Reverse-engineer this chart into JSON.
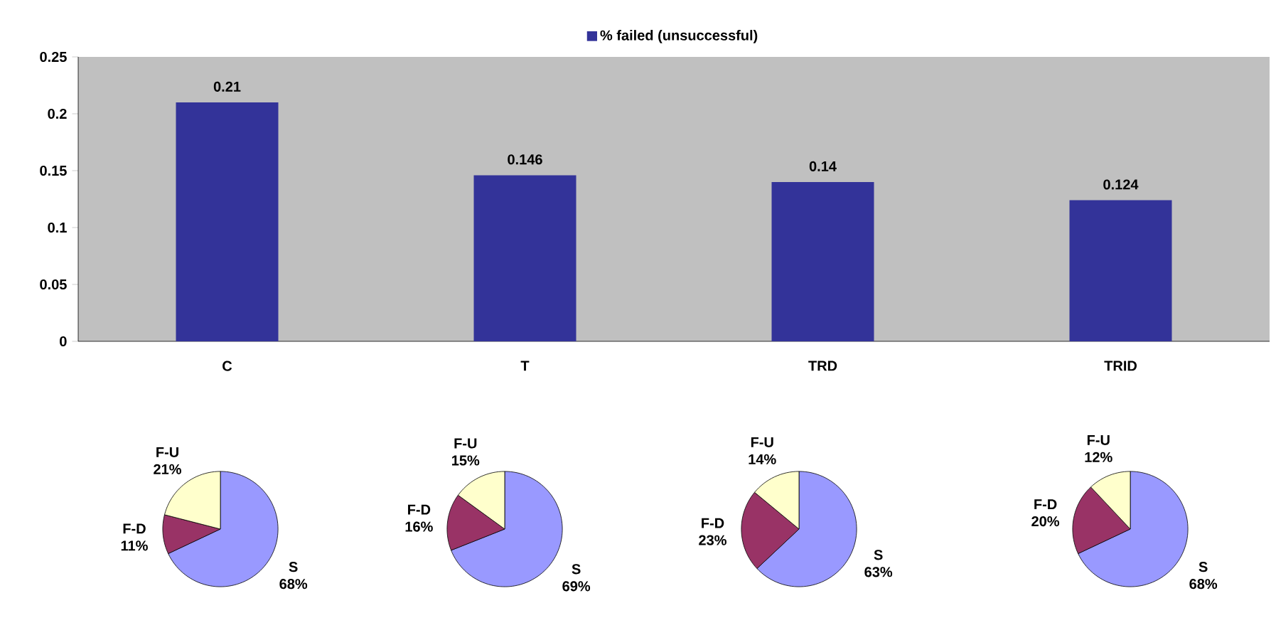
{
  "chart_data": [
    {
      "type": "bar",
      "categories": [
        "C",
        "T",
        "TRD",
        "TRID"
      ],
      "series": [
        {
          "name": "% failed (unsuccessful)",
          "color": "#333399",
          "values": [
            0.21,
            0.146,
            0.14,
            0.124
          ],
          "value_labels": [
            "0.21",
            "0.146",
            "0.14",
            "0.124"
          ]
        }
      ],
      "ylim": [
        0,
        0.25
      ],
      "yticks": [
        0,
        0.05,
        0.1,
        0.15,
        0.2,
        0.25
      ],
      "legend": "top"
    },
    {
      "type": "pie",
      "categories": [
        "S",
        "F-D",
        "F-U"
      ],
      "values": [
        68,
        11,
        21
      ],
      "value_labels": [
        "68%",
        "11%",
        "21%"
      ],
      "colors": [
        "#9999ff",
        "#993366",
        "#ffffcc"
      ]
    },
    {
      "type": "pie",
      "categories": [
        "S",
        "F-D",
        "F-U"
      ],
      "values": [
        69,
        16,
        15
      ],
      "value_labels": [
        "69%",
        "16%",
        "15%"
      ],
      "colors": [
        "#9999ff",
        "#993366",
        "#ffffcc"
      ]
    },
    {
      "type": "pie",
      "categories": [
        "S",
        "F-D",
        "F-U"
      ],
      "values": [
        63,
        23,
        14
      ],
      "value_labels": [
        "63%",
        "23%",
        "14%"
      ],
      "colors": [
        "#9999ff",
        "#993366",
        "#ffffcc"
      ]
    },
    {
      "type": "pie",
      "categories": [
        "S",
        "F-D",
        "F-U"
      ],
      "values": [
        68,
        20,
        12
      ],
      "value_labels": [
        "68%",
        "20%",
        "12%"
      ],
      "colors": [
        "#9999ff",
        "#993366",
        "#ffffcc"
      ]
    }
  ]
}
